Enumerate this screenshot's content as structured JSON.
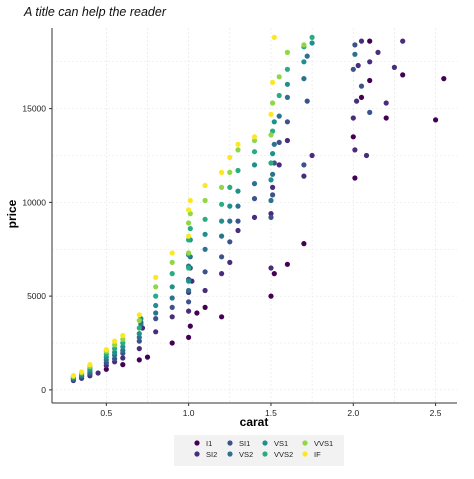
{
  "chart_data": {
    "type": "scatter",
    "title": "A title can help the reader",
    "xlabel": "carat",
    "ylabel": "price",
    "xlim": [
      0.17,
      2.63
    ],
    "ylim": [
      -700,
      19300
    ],
    "x_ticks": [
      0.5,
      1.0,
      1.5,
      2.0,
      2.5
    ],
    "x_tick_labels": [
      "0.5",
      "1.0",
      "1.5",
      "2.0",
      "2.5"
    ],
    "y_ticks": [
      0,
      5000,
      10000,
      15000
    ],
    "y_tick_labels": [
      "0",
      "5000",
      "10000",
      "15000"
    ],
    "grid": true,
    "legend_position": "bottom",
    "series": [
      {
        "name": "I1",
        "color": "#440154",
        "points": [
          [
            0.5,
            1100
          ],
          [
            0.6,
            1350
          ],
          [
            0.7,
            1600
          ],
          [
            0.75,
            1750
          ],
          [
            0.9,
            2500
          ],
          [
            1.0,
            2800
          ],
          [
            1.01,
            3400
          ],
          [
            1.05,
            4100
          ],
          [
            1.1,
            4400
          ],
          [
            1.2,
            3900
          ],
          [
            1.5,
            5000
          ],
          [
            1.52,
            6200
          ],
          [
            1.6,
            6700
          ],
          [
            1.7,
            7800
          ],
          [
            2.0,
            13500
          ],
          [
            2.01,
            11300
          ],
          [
            2.05,
            15600
          ],
          [
            2.1,
            16500
          ],
          [
            2.1,
            18600
          ],
          [
            2.2,
            14500
          ],
          [
            2.3,
            16800
          ],
          [
            2.5,
            14400
          ],
          [
            2.55,
            16600
          ]
        ]
      },
      {
        "name": "SI2",
        "color": "#472d7b",
        "points": [
          [
            0.3,
            500
          ],
          [
            0.35,
            620
          ],
          [
            0.4,
            750
          ],
          [
            0.45,
            900
          ],
          [
            0.5,
            1300
          ],
          [
            0.55,
            1500
          ],
          [
            0.6,
            1700
          ],
          [
            0.7,
            2200
          ],
          [
            0.72,
            3300
          ],
          [
            0.8,
            3100
          ],
          [
            0.9,
            3900
          ],
          [
            1.0,
            4200
          ],
          [
            1.0,
            5200
          ],
          [
            1.02,
            5800
          ],
          [
            1.1,
            5300
          ],
          [
            1.2,
            6200
          ],
          [
            1.25,
            6800
          ],
          [
            1.3,
            8500
          ],
          [
            1.4,
            9200
          ],
          [
            1.5,
            6500
          ],
          [
            1.5,
            9400
          ],
          [
            1.51,
            10800
          ],
          [
            1.55,
            12000
          ],
          [
            1.6,
            13300
          ],
          [
            1.7,
            11400
          ],
          [
            1.75,
            12500
          ],
          [
            2.0,
            14500
          ],
          [
            2.01,
            12800
          ],
          [
            2.02,
            15400
          ],
          [
            2.03,
            17300
          ],
          [
            2.05,
            18600
          ],
          [
            2.08,
            12500
          ],
          [
            2.1,
            17500
          ],
          [
            2.15,
            18000
          ],
          [
            2.2,
            15300
          ],
          [
            2.25,
            17200
          ],
          [
            2.3,
            18600
          ]
        ]
      },
      {
        "name": "SI1",
        "color": "#3b528b",
        "points": [
          [
            0.3,
            550
          ],
          [
            0.35,
            700
          ],
          [
            0.4,
            850
          ],
          [
            0.5,
            1450
          ],
          [
            0.55,
            1650
          ],
          [
            0.6,
            1950
          ],
          [
            0.7,
            2600
          ],
          [
            0.71,
            3600
          ],
          [
            0.8,
            3800
          ],
          [
            0.9,
            4400
          ],
          [
            1.0,
            4700
          ],
          [
            1.0,
            5900
          ],
          [
            1.01,
            6500
          ],
          [
            1.1,
            6300
          ],
          [
            1.2,
            7100
          ],
          [
            1.25,
            7900
          ],
          [
            1.3,
            9000
          ],
          [
            1.4,
            10200
          ],
          [
            1.5,
            9200
          ],
          [
            1.51,
            10400
          ],
          [
            1.52,
            12100
          ],
          [
            1.55,
            13200
          ],
          [
            1.6,
            14300
          ],
          [
            1.7,
            12000
          ],
          [
            1.72,
            15400
          ],
          [
            2.0,
            17100
          ],
          [
            2.01,
            18400
          ],
          [
            2.05,
            16200
          ],
          [
            2.1,
            14800
          ]
        ]
      },
      {
        "name": "VS2",
        "color": "#2c728e",
        "points": [
          [
            0.3,
            600
          ],
          [
            0.35,
            750
          ],
          [
            0.4,
            950
          ],
          [
            0.5,
            1600
          ],
          [
            0.55,
            1850
          ],
          [
            0.6,
            2100
          ],
          [
            0.7,
            2800
          ],
          [
            0.71,
            3500
          ],
          [
            0.8,
            4100
          ],
          [
            0.9,
            4900
          ],
          [
            1.0,
            5300
          ],
          [
            1.0,
            6600
          ],
          [
            1.01,
            7100
          ],
          [
            1.1,
            7500
          ],
          [
            1.2,
            8200
          ],
          [
            1.25,
            9000
          ],
          [
            1.3,
            9800
          ],
          [
            1.4,
            11000
          ],
          [
            1.5,
            10100
          ],
          [
            1.51,
            11500
          ],
          [
            1.52,
            13100
          ],
          [
            1.55,
            14600
          ],
          [
            1.6,
            15600
          ],
          [
            1.7,
            16600
          ],
          [
            1.72,
            17800
          ],
          [
            2.01,
            17900
          ]
        ]
      },
      {
        "name": "VS1",
        "color": "#21908c",
        "points": [
          [
            0.3,
            650
          ],
          [
            0.35,
            820
          ],
          [
            0.4,
            1050
          ],
          [
            0.5,
            1750
          ],
          [
            0.55,
            2000
          ],
          [
            0.6,
            2300
          ],
          [
            0.7,
            3000
          ],
          [
            0.71,
            3800
          ],
          [
            0.8,
            4500
          ],
          [
            0.9,
            5500
          ],
          [
            1.0,
            5800
          ],
          [
            1.0,
            7200
          ],
          [
            1.01,
            8000
          ],
          [
            1.1,
            8300
          ],
          [
            1.2,
            9000
          ],
          [
            1.25,
            9800
          ],
          [
            1.3,
            10600
          ],
          [
            1.4,
            12000
          ],
          [
            1.5,
            11200
          ],
          [
            1.51,
            12600
          ],
          [
            1.52,
            14300
          ],
          [
            1.6,
            16300
          ],
          [
            1.7,
            17500
          ],
          [
            1.75,
            18500
          ]
        ]
      },
      {
        "name": "VVS2",
        "color": "#27ad81",
        "points": [
          [
            0.3,
            700
          ],
          [
            0.35,
            880
          ],
          [
            0.4,
            1150
          ],
          [
            0.5,
            1900
          ],
          [
            0.55,
            2200
          ],
          [
            0.6,
            2500
          ],
          [
            0.7,
            3300
          ],
          [
            0.8,
            5000
          ],
          [
            0.9,
            6200
          ],
          [
            1.0,
            6500
          ],
          [
            1.0,
            8000
          ],
          [
            1.01,
            8600
          ],
          [
            1.1,
            9100
          ],
          [
            1.2,
            9900
          ],
          [
            1.25,
            10800
          ],
          [
            1.3,
            11700
          ],
          [
            1.4,
            12700
          ],
          [
            1.5,
            12100
          ],
          [
            1.51,
            13800
          ],
          [
            1.55,
            15700
          ],
          [
            1.6,
            17100
          ],
          [
            1.7,
            18300
          ],
          [
            1.75,
            18800
          ]
        ]
      },
      {
        "name": "VVS1",
        "color": "#8fd744",
        "points": [
          [
            0.3,
            720
          ],
          [
            0.35,
            920
          ],
          [
            0.4,
            1250
          ],
          [
            0.5,
            2050
          ],
          [
            0.55,
            2400
          ],
          [
            0.6,
            2700
          ],
          [
            0.7,
            3700
          ],
          [
            0.8,
            5500
          ],
          [
            0.9,
            6800
          ],
          [
            1.0,
            7300
          ],
          [
            1.0,
            8900
          ],
          [
            1.01,
            9400
          ],
          [
            1.1,
            10100
          ],
          [
            1.2,
            10800
          ],
          [
            1.25,
            11600
          ],
          [
            1.3,
            12800
          ],
          [
            1.4,
            13300
          ],
          [
            1.5,
            13600
          ],
          [
            1.51,
            15300
          ],
          [
            1.55,
            16700
          ],
          [
            1.6,
            18000
          ],
          [
            1.7,
            18400
          ]
        ]
      },
      {
        "name": "IF",
        "color": "#fde725",
        "points": [
          [
            0.3,
            760
          ],
          [
            0.35,
            960
          ],
          [
            0.4,
            1350
          ],
          [
            0.5,
            2150
          ],
          [
            0.55,
            2600
          ],
          [
            0.6,
            2900
          ],
          [
            0.7,
            4000
          ],
          [
            0.8,
            6000
          ],
          [
            0.9,
            7300
          ],
          [
            1.0,
            8200
          ],
          [
            1.0,
            9600
          ],
          [
            1.01,
            10100
          ],
          [
            1.1,
            10900
          ],
          [
            1.2,
            11600
          ],
          [
            1.25,
            12400
          ],
          [
            1.3,
            13100
          ],
          [
            1.4,
            13500
          ],
          [
            1.5,
            14700
          ],
          [
            1.51,
            16400
          ],
          [
            1.52,
            18800
          ]
        ]
      }
    ]
  }
}
